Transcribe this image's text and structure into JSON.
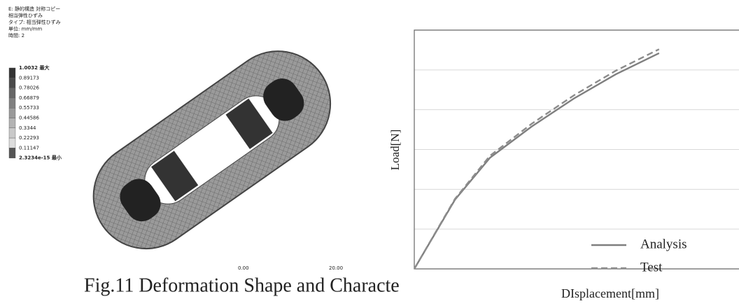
{
  "figure_image": {
    "header": [
      "E: 静的構造 対称コピー",
      "相当弾性ひずみ",
      "タイプ: 相当弾性ひずみ",
      "単位: mm/mm",
      "時間: 2"
    ],
    "legend": [
      "1.0032 最大",
      "0.89173",
      "0.78026",
      "0.66879",
      "0.55733",
      "0.44586",
      "0.3344",
      "0.22293",
      "0.11147",
      "2.3234e-15 最小"
    ],
    "scale": [
      "0.00",
      "20.00"
    ]
  },
  "chart_data": {
    "type": "line",
    "xlabel": "DIsplacement[mm]",
    "ylabel": "Load[N]",
    "xlim": [
      0,
      8
    ],
    "ylim": [
      0,
      6
    ],
    "yticks": [
      1,
      2,
      3,
      4,
      5
    ],
    "grid": true,
    "legend": "lower right",
    "series": [
      {
        "name": "Analysis",
        "color": "#7f7f7f",
        "dash": false,
        "x": [
          0,
          0.97,
          1.8,
          2.8,
          3.8,
          4.8,
          5.83
        ],
        "values": [
          0,
          1.74,
          2.79,
          3.58,
          4.28,
          4.89,
          5.42
        ]
      },
      {
        "name": "Test",
        "color": "#8c8c8c",
        "dash": true,
        "x": [
          0,
          0.97,
          1.8,
          2.8,
          3.8,
          4.8,
          5.83
        ],
        "values": [
          0,
          1.76,
          2.84,
          3.65,
          4.36,
          4.98,
          5.52
        ]
      }
    ]
  },
  "caption": "Fig.11 Deformation Shape and Characte"
}
